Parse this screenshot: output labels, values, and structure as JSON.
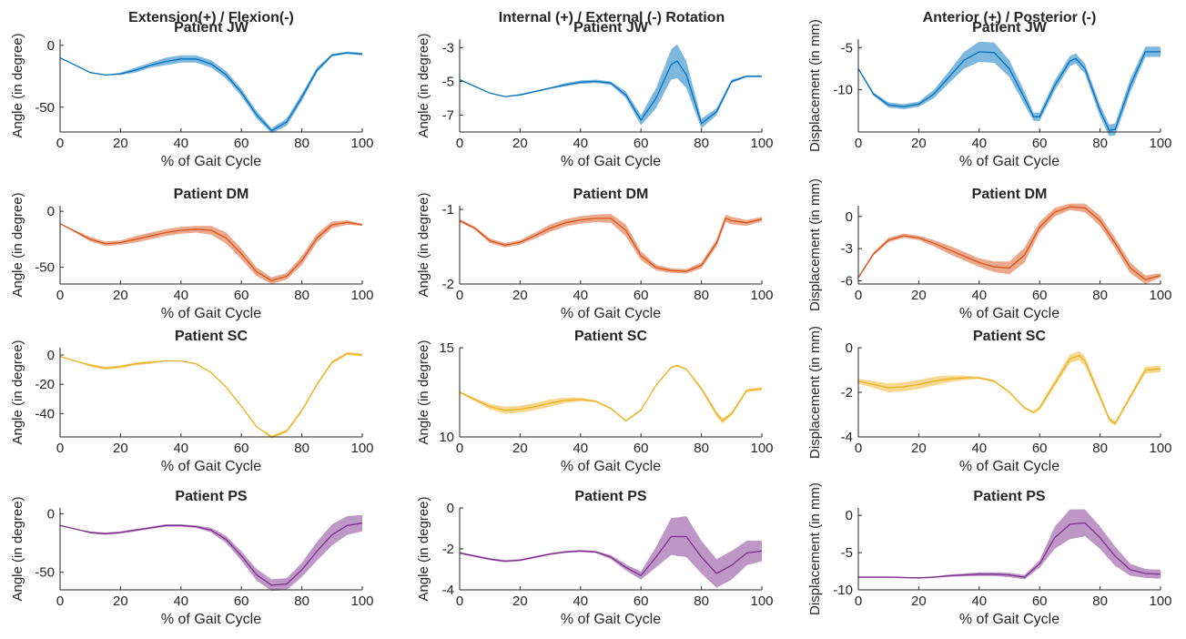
{
  "chart_data": [
    {
      "type": "line",
      "column_title": "Extension(+) / Flexion(-)",
      "title": "Patient JW",
      "xlabel": "% of Gait Cycle",
      "ylabel": "Angle (in degree)",
      "color": "#0072BD",
      "xlim": [
        0,
        100
      ],
      "ylim": [
        -70,
        5
      ],
      "xticks": [
        0,
        20,
        40,
        60,
        80,
        100
      ],
      "yticks": [
        -50,
        0
      ],
      "x": [
        0,
        5,
        10,
        15,
        20,
        25,
        30,
        35,
        40,
        45,
        50,
        55,
        60,
        65,
        70,
        75,
        80,
        85,
        90,
        95,
        100
      ],
      "y": [
        -10,
        -16,
        -22,
        -24,
        -23,
        -20,
        -16,
        -13,
        -11,
        -11,
        -15,
        -24,
        -38,
        -56,
        -69,
        -62,
        -42,
        -20,
        -8,
        -6,
        -7
      ],
      "band": [
        0,
        0,
        0,
        0,
        1,
        2,
        2,
        3,
        3,
        3,
        3,
        3,
        3,
        3,
        2,
        3,
        3,
        2,
        1,
        1,
        1
      ]
    },
    {
      "type": "line",
      "title": "Patient DM",
      "xlabel": "% of Gait Cycle",
      "ylabel": "Angle (in degree)",
      "color": "#D95319",
      "xlim": [
        0,
        100
      ],
      "ylim": [
        -65,
        5
      ],
      "xticks": [
        0,
        20,
        40,
        60,
        80,
        100
      ],
      "yticks": [
        -50,
        0
      ],
      "x": [
        0,
        5,
        10,
        15,
        20,
        25,
        30,
        35,
        40,
        45,
        50,
        55,
        60,
        65,
        70,
        75,
        80,
        85,
        90,
        95,
        100
      ],
      "y": [
        -11,
        -18,
        -25,
        -29,
        -28,
        -25,
        -22,
        -19,
        -17,
        -16,
        -17,
        -24,
        -38,
        -54,
        -62,
        -58,
        -44,
        -24,
        -12,
        -10,
        -12
      ],
      "band": [
        0,
        1,
        2,
        2,
        2,
        3,
        3,
        3,
        3,
        3,
        4,
        5,
        5,
        4,
        3,
        3,
        4,
        4,
        3,
        2,
        1
      ]
    },
    {
      "type": "line",
      "title": "Patient SC",
      "xlabel": "% of Gait Cycle",
      "ylabel": "Angle (in degree)",
      "color": "#EDB120",
      "xlim": [
        0,
        100
      ],
      "ylim": [
        -56,
        5
      ],
      "xticks": [
        0,
        20,
        40,
        60,
        80,
        100
      ],
      "yticks": [
        -40,
        -20,
        0
      ],
      "x": [
        0,
        5,
        10,
        15,
        20,
        25,
        30,
        35,
        40,
        45,
        50,
        55,
        60,
        65,
        70,
        75,
        80,
        85,
        90,
        95,
        100
      ],
      "y": [
        -1,
        -4,
        -7,
        -9,
        -8,
        -6,
        -5,
        -4,
        -4,
        -6,
        -12,
        -22,
        -35,
        -49,
        -56,
        -52,
        -38,
        -20,
        -5,
        1,
        0
      ],
      "band": [
        0,
        0,
        1,
        1,
        1,
        1,
        1,
        0,
        0,
        0,
        0,
        0,
        0,
        0,
        1,
        1,
        1,
        1,
        1,
        1,
        1
      ]
    },
    {
      "type": "line",
      "title": "Patient PS",
      "xlabel": "% of Gait Cycle",
      "ylabel": "Angle (in degree)",
      "color": "#7E2F8E",
      "xlim": [
        0,
        100
      ],
      "ylim": [
        -65,
        5
      ],
      "xticks": [
        0,
        20,
        40,
        60,
        80,
        100
      ],
      "yticks": [
        -50,
        0
      ],
      "x": [
        0,
        5,
        10,
        15,
        20,
        25,
        30,
        35,
        40,
        45,
        50,
        55,
        60,
        65,
        70,
        75,
        80,
        85,
        90,
        95,
        100
      ],
      "y": [
        -10,
        -13,
        -16,
        -17,
        -16,
        -14,
        -12,
        -10,
        -10,
        -11,
        -14,
        -22,
        -36,
        -52,
        -61,
        -60,
        -48,
        -32,
        -18,
        -10,
        -8
      ],
      "band": [
        0,
        0,
        1,
        1,
        1,
        1,
        1,
        1,
        1,
        1,
        2,
        3,
        4,
        5,
        5,
        5,
        6,
        8,
        9,
        8,
        7
      ]
    },
    {
      "type": "line",
      "column_title": "Internal (+) / External (-) Rotation",
      "title": "Patient JW",
      "xlabel": "% of Gait Cycle",
      "ylabel": "Angle (in degree)",
      "color": "#0072BD",
      "xlim": [
        0,
        100
      ],
      "ylim": [
        -8,
        -2.5
      ],
      "xticks": [
        0,
        20,
        40,
        60,
        80,
        100
      ],
      "yticks": [
        -7,
        -5,
        -3
      ],
      "x": [
        0,
        5,
        10,
        15,
        20,
        25,
        30,
        35,
        40,
        45,
        50,
        55,
        60,
        65,
        70,
        72,
        75,
        80,
        85,
        90,
        95,
        100
      ],
      "y": [
        -4.9,
        -5.3,
        -5.7,
        -5.9,
        -5.8,
        -5.6,
        -5.4,
        -5.2,
        -5.05,
        -5.0,
        -5.1,
        -5.8,
        -7.3,
        -6.0,
        -4.0,
        -3.8,
        -4.6,
        -7.5,
        -6.8,
        -5.0,
        -4.7,
        -4.7
      ],
      "band": [
        0,
        0,
        0,
        0,
        0.05,
        0.05,
        0.05,
        0.1,
        0.1,
        0.1,
        0.1,
        0.2,
        0.3,
        0.6,
        0.9,
        1.0,
        0.8,
        0.3,
        0.2,
        0.1,
        0.05,
        0.05
      ]
    },
    {
      "type": "line",
      "title": "Patient DM",
      "xlabel": "% of Gait Cycle",
      "ylabel": "Angle (in degree)",
      "color": "#D95319",
      "xlim": [
        0,
        100
      ],
      "ylim": [
        -2,
        -0.95
      ],
      "xticks": [
        0,
        20,
        40,
        60,
        80,
        100
      ],
      "yticks": [
        -2,
        -1
      ],
      "x": [
        0,
        5,
        10,
        15,
        20,
        25,
        30,
        35,
        40,
        45,
        50,
        55,
        60,
        65,
        70,
        75,
        80,
        85,
        88,
        90,
        95,
        100
      ],
      "y": [
        -1.15,
        -1.25,
        -1.42,
        -1.48,
        -1.44,
        -1.35,
        -1.25,
        -1.18,
        -1.14,
        -1.12,
        -1.12,
        -1.28,
        -1.62,
        -1.78,
        -1.82,
        -1.83,
        -1.75,
        -1.45,
        -1.12,
        -1.15,
        -1.18,
        -1.13
      ],
      "band": [
        0.02,
        0.02,
        0.03,
        0.03,
        0.03,
        0.04,
        0.05,
        0.05,
        0.05,
        0.05,
        0.06,
        0.08,
        0.06,
        0.04,
        0.03,
        0.03,
        0.04,
        0.05,
        0.05,
        0.05,
        0.04,
        0.03
      ]
    },
    {
      "type": "line",
      "title": "Patient SC",
      "xlabel": "% of Gait Cycle",
      "ylabel": "Angle (in degree)",
      "color": "#EDB120",
      "xlim": [
        0,
        100
      ],
      "ylim": [
        10,
        15
      ],
      "xticks": [
        0,
        20,
        40,
        60,
        80,
        100
      ],
      "yticks": [
        10,
        15
      ],
      "x": [
        0,
        5,
        10,
        15,
        20,
        25,
        30,
        35,
        40,
        45,
        50,
        55,
        60,
        65,
        70,
        72,
        75,
        80,
        85,
        87,
        90,
        95,
        100
      ],
      "y": [
        12.5,
        12.1,
        11.7,
        11.5,
        11.55,
        11.7,
        11.9,
        12.05,
        12.1,
        12.0,
        11.6,
        10.9,
        11.5,
        12.9,
        13.9,
        14.0,
        13.8,
        12.7,
        11.3,
        10.9,
        11.3,
        12.6,
        12.7
      ],
      "band": [
        0.05,
        0.1,
        0.15,
        0.2,
        0.2,
        0.2,
        0.2,
        0.15,
        0.1,
        0.05,
        0.05,
        0.05,
        0.05,
        0.05,
        0.05,
        0.05,
        0.05,
        0.1,
        0.15,
        0.15,
        0.1,
        0.1,
        0.1
      ]
    },
    {
      "type": "line",
      "title": "Patient PS",
      "xlabel": "% of Gait Cycle",
      "ylabel": "Angle (in degree)",
      "color": "#7E2F8E",
      "xlim": [
        0,
        100
      ],
      "ylim": [
        -4,
        0
      ],
      "xticks": [
        0,
        20,
        40,
        60,
        80,
        100
      ],
      "yticks": [
        -4,
        -2,
        0
      ],
      "x": [
        0,
        5,
        10,
        15,
        20,
        25,
        30,
        35,
        40,
        45,
        50,
        55,
        60,
        65,
        70,
        75,
        80,
        85,
        90,
        95,
        100
      ],
      "y": [
        -2.2,
        -2.35,
        -2.5,
        -2.6,
        -2.55,
        -2.4,
        -2.25,
        -2.15,
        -2.1,
        -2.15,
        -2.4,
        -2.9,
        -3.3,
        -2.4,
        -1.4,
        -1.4,
        -2.4,
        -3.2,
        -2.8,
        -2.2,
        -2.1
      ],
      "band": [
        0.05,
        0.05,
        0.05,
        0.05,
        0.05,
        0.05,
        0.05,
        0.05,
        0.05,
        0.05,
        0.1,
        0.15,
        0.2,
        0.5,
        0.9,
        1.0,
        0.8,
        0.7,
        0.7,
        0.6,
        0.5
      ]
    },
    {
      "type": "line",
      "column_title": "Anterior (+) / Posterior (-)",
      "title": "Patient JW",
      "xlabel": "% of Gait Cycle",
      "ylabel": "Displacement (in mm)",
      "color": "#0072BD",
      "xlim": [
        0,
        100
      ],
      "ylim": [
        -15,
        -4
      ],
      "xticks": [
        0,
        20,
        40,
        60,
        80,
        100
      ],
      "yticks": [
        -10,
        -5
      ],
      "x": [
        0,
        5,
        10,
        15,
        20,
        25,
        30,
        35,
        40,
        45,
        50,
        55,
        58,
        60,
        65,
        70,
        72,
        75,
        80,
        83,
        85,
        90,
        95,
        100
      ],
      "y": [
        -7.5,
        -10.5,
        -11.8,
        -12,
        -11.7,
        -10.5,
        -8.5,
        -6.5,
        -5.5,
        -5.6,
        -7.5,
        -11,
        -13.2,
        -13.2,
        -9.5,
        -6.6,
        -6.3,
        -7.5,
        -12.5,
        -14.8,
        -14.7,
        -9.5,
        -5.5,
        -5.5
      ],
      "band": [
        0.1,
        0.2,
        0.3,
        0.3,
        0.3,
        0.5,
        0.7,
        1.0,
        1.2,
        1.2,
        1.0,
        0.8,
        0.5,
        0.5,
        0.6,
        0.6,
        0.6,
        0.6,
        0.7,
        0.7,
        0.7,
        0.8,
        0.6,
        0.6
      ]
    },
    {
      "type": "line",
      "title": "Patient DM",
      "xlabel": "% of Gait Cycle",
      "ylabel": "Displacement (in mm)",
      "color": "#D95319",
      "xlim": [
        0,
        100
      ],
      "ylim": [
        -6.3,
        1
      ],
      "xticks": [
        0,
        20,
        40,
        60,
        80,
        100
      ],
      "yticks": [
        -6,
        -3,
        0
      ],
      "x": [
        0,
        5,
        10,
        15,
        20,
        25,
        30,
        35,
        40,
        45,
        50,
        55,
        60,
        65,
        70,
        75,
        80,
        85,
        90,
        95,
        100
      ],
      "y": [
        -5.7,
        -3.5,
        -2.2,
        -1.8,
        -2.0,
        -2.5,
        -3.1,
        -3.7,
        -4.3,
        -4.7,
        -4.8,
        -3.6,
        -1.0,
        0.4,
        0.9,
        0.8,
        -0.4,
        -2.5,
        -4.8,
        -5.9,
        -5.5
      ],
      "band": [
        0.1,
        0.15,
        0.2,
        0.2,
        0.2,
        0.3,
        0.4,
        0.4,
        0.4,
        0.5,
        0.6,
        0.7,
        0.5,
        0.4,
        0.3,
        0.4,
        0.5,
        0.5,
        0.5,
        0.4,
        0.2
      ]
    },
    {
      "type": "line",
      "title": "Patient SC",
      "xlabel": "% of Gait Cycle",
      "ylabel": "Displacement (in mm)",
      "color": "#EDB120",
      "xlim": [
        0,
        100
      ],
      "ylim": [
        -4,
        0
      ],
      "xticks": [
        0,
        20,
        40,
        60,
        80,
        100
      ],
      "yticks": [
        -4,
        -2,
        0
      ],
      "x": [
        0,
        5,
        10,
        15,
        20,
        25,
        30,
        35,
        40,
        45,
        50,
        55,
        58,
        60,
        65,
        70,
        73,
        75,
        80,
        83,
        85,
        90,
        95,
        100
      ],
      "y": [
        -1.5,
        -1.65,
        -1.8,
        -1.75,
        -1.65,
        -1.5,
        -1.4,
        -1.35,
        -1.35,
        -1.5,
        -2.0,
        -2.7,
        -2.9,
        -2.7,
        -1.6,
        -0.5,
        -0.35,
        -0.6,
        -2.2,
        -3.2,
        -3.4,
        -2.2,
        -1.0,
        -0.95
      ],
      "band": [
        0.1,
        0.15,
        0.2,
        0.2,
        0.2,
        0.2,
        0.15,
        0.1,
        0.05,
        0.05,
        0.05,
        0.05,
        0.05,
        0.1,
        0.15,
        0.2,
        0.2,
        0.2,
        0.15,
        0.1,
        0.1,
        0.1,
        0.15,
        0.15
      ]
    },
    {
      "type": "line",
      "title": "Patient PS",
      "xlabel": "% of Gait Cycle",
      "ylabel": "Displacement (in mm)",
      "color": "#7E2F8E",
      "xlim": [
        0,
        100
      ],
      "ylim": [
        -10,
        1
      ],
      "xticks": [
        0,
        20,
        40,
        60,
        80,
        100
      ],
      "yticks": [
        -10,
        -5,
        0
      ],
      "x": [
        0,
        5,
        10,
        15,
        20,
        25,
        30,
        35,
        40,
        45,
        50,
        55,
        60,
        65,
        70,
        75,
        80,
        85,
        90,
        95,
        100
      ],
      "y": [
        -8.3,
        -8.3,
        -8.3,
        -8.35,
        -8.4,
        -8.3,
        -8.1,
        -8.0,
        -7.9,
        -7.9,
        -8.0,
        -8.3,
        -6.5,
        -3.0,
        -1.2,
        -1.0,
        -3.0,
        -5.5,
        -7.3,
        -7.8,
        -7.9
      ],
      "band": [
        0.1,
        0.1,
        0.1,
        0.1,
        0.1,
        0.1,
        0.15,
        0.2,
        0.25,
        0.25,
        0.3,
        0.3,
        0.5,
        1.5,
        2.0,
        1.8,
        1.5,
        1.3,
        0.8,
        0.6,
        0.6
      ]
    }
  ]
}
